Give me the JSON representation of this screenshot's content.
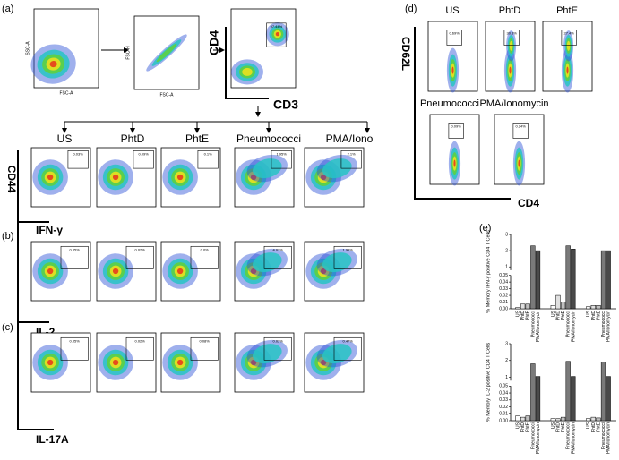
{
  "panel_a": {
    "label": "(a)",
    "plots": [
      {
        "x_label": "FSC-A",
        "y_label": "SSC-A"
      },
      {
        "x_label": "FSC-A",
        "y_label": "FSC-H"
      },
      {
        "gate": "97.44%"
      }
    ],
    "y_marker": "CD4",
    "x_marker": "CD3"
  },
  "panel_abc": {
    "columns": [
      "US",
      "PhtD",
      "PhtE",
      "Pneumococci",
      "PMA/Iono"
    ],
    "rows": [
      {
        "y_marker": "CD44",
        "x_marker": "IFN-γ",
        "gates": [
          "0.03%",
          "0.09%",
          "0.1%",
          "1.95%",
          "2.1%"
        ]
      },
      {
        "label": "(b)",
        "x_marker": "IL-2",
        "gates": [
          "0.05%",
          "0.02%",
          "0.0%",
          "4.03%",
          "1.95%"
        ]
      },
      {
        "label": "(c)",
        "x_marker": "IL-17A",
        "gates": [
          "0.05%",
          "0.02%",
          "0.08%",
          "0.03%",
          "0.47%"
        ]
      }
    ]
  },
  "panel_d": {
    "label": "(d)",
    "y_marker": "CD62L",
    "x_marker": "CD4",
    "plots": [
      {
        "title": "US",
        "gate": "0.69%"
      },
      {
        "title": "PhtD",
        "gate": "30.5%"
      },
      {
        "title": "PhtE",
        "gate": "27.4%"
      },
      {
        "title": "Pneumococci",
        "gate": "0.09%"
      },
      {
        "title": "PMA/Ionomycin",
        "gate": "0.24%"
      }
    ]
  },
  "panel_e_label": "(e)",
  "chart_data": [
    {
      "type": "bar",
      "y_label": "% Memory IFN-γ positive CD4 T Cells",
      "categories": [
        null,
        null,
        null
      ],
      "series": [
        {
          "name": "US",
          "color": "#ffffff",
          "values": [
            0.002,
            0.005,
            0.003
          ]
        },
        {
          "name": "PhtD",
          "color": "#e0e0e0",
          "values": [
            0.007,
            0.02,
            0.005
          ]
        },
        {
          "name": "PhtE",
          "color": "#c0c0c0",
          "values": [
            0.007,
            0.01,
            0.005
          ]
        },
        {
          "name": "Pneumococci",
          "color": "#7a7a7a",
          "values": [
            2.3,
            2.3,
            2.0
          ]
        },
        {
          "name": "PMA/Ionomycin",
          "color": "#4a4a4a",
          "values": [
            2.0,
            2.1,
            2.0
          ]
        }
      ],
      "ylim": [
        0,
        3
      ],
      "y_break": [
        0.05,
        0.8
      ],
      "yticks": [
        {
          "value": 0,
          "label": "0.00"
        },
        0.01,
        0.02,
        0.03,
        0.04,
        0.05,
        1,
        2,
        3
      ]
    },
    {
      "type": "bar",
      "y_label": "% Memory IL-2 positive CD4 T Cells",
      "categories": [
        null,
        null,
        null
      ],
      "series": [
        {
          "name": "US",
          "color": "#ffffff",
          "values": [
            0.007,
            0.003,
            0.003
          ]
        },
        {
          "name": "PhtD",
          "color": "#e0e0e0",
          "values": [
            0.005,
            0.003,
            0.005
          ]
        },
        {
          "name": "PhtE",
          "color": "#c0c0c0",
          "values": [
            0.007,
            0.005,
            0.004
          ]
        },
        {
          "name": "Pneumococci",
          "color": "#7a7a7a",
          "values": [
            1.8,
            1.95,
            1.9
          ]
        },
        {
          "name": "PMA/Ionomycin",
          "color": "#4a4a4a",
          "values": [
            1.05,
            1.05,
            1.05
          ]
        }
      ],
      "ylim": [
        0,
        3
      ],
      "y_break": [
        0.05,
        0.8
      ],
      "yticks": [
        {
          "value": 0,
          "label": "0.00"
        },
        0.01,
        0.02,
        0.03,
        0.04,
        0.05,
        1,
        2,
        3
      ]
    }
  ]
}
